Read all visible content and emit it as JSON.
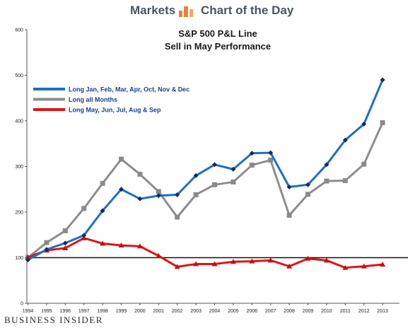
{
  "header": {
    "left_label": "Markets",
    "right_label": "Chart of the Day"
  },
  "brand": "BUSINESS INSIDER",
  "colors": {
    "blue": "#1f6fc4",
    "gray": "#8d8d8d",
    "red": "#e01414",
    "baseline": "#111111",
    "logo": "#e8823a"
  },
  "chart_data": {
    "type": "line",
    "title": "S&P 500 P&L Line",
    "subtitle": "Sell in May Performance",
    "x": [
      "1994",
      "1995",
      "1996",
      "1997",
      "1998",
      "1999",
      "2000",
      "2001",
      "2002",
      "2003",
      "2004",
      "2005",
      "2006",
      "2007",
      "2008",
      "2009",
      "2010",
      "2011",
      "2012",
      "2013"
    ],
    "ylim": [
      0,
      600
    ],
    "yticks": [
      0,
      100,
      200,
      300,
      400,
      500,
      600
    ],
    "baseline": 100,
    "grid": false,
    "legend_position": "top-left",
    "series": [
      {
        "name": "Long Jan, Feb, Mar, Apr, Oct, Nov & Dec",
        "color": "#1f6fc4",
        "marker": "diamond",
        "values": [
          95,
          118,
          132,
          149,
          203,
          250,
          229,
          236,
          238,
          280,
          304,
          294,
          329,
          330,
          255,
          260,
          304,
          358,
          393,
          490
        ]
      },
      {
        "name": "Long all Months",
        "color": "#8d8d8d",
        "marker": "square",
        "values": [
          100,
          133,
          159,
          208,
          263,
          316,
          283,
          245,
          189,
          238,
          260,
          266,
          303,
          314,
          193,
          239,
          268,
          269,
          305,
          396
        ]
      },
      {
        "name": "Long May, Jun, Jul, Aug & Sep",
        "color": "#e01414",
        "marker": "triangle",
        "values": [
          101,
          116,
          121,
          143,
          131,
          127,
          125,
          104,
          80,
          86,
          86,
          91,
          92,
          94,
          81,
          98,
          94,
          78,
          81,
          85
        ]
      }
    ]
  }
}
